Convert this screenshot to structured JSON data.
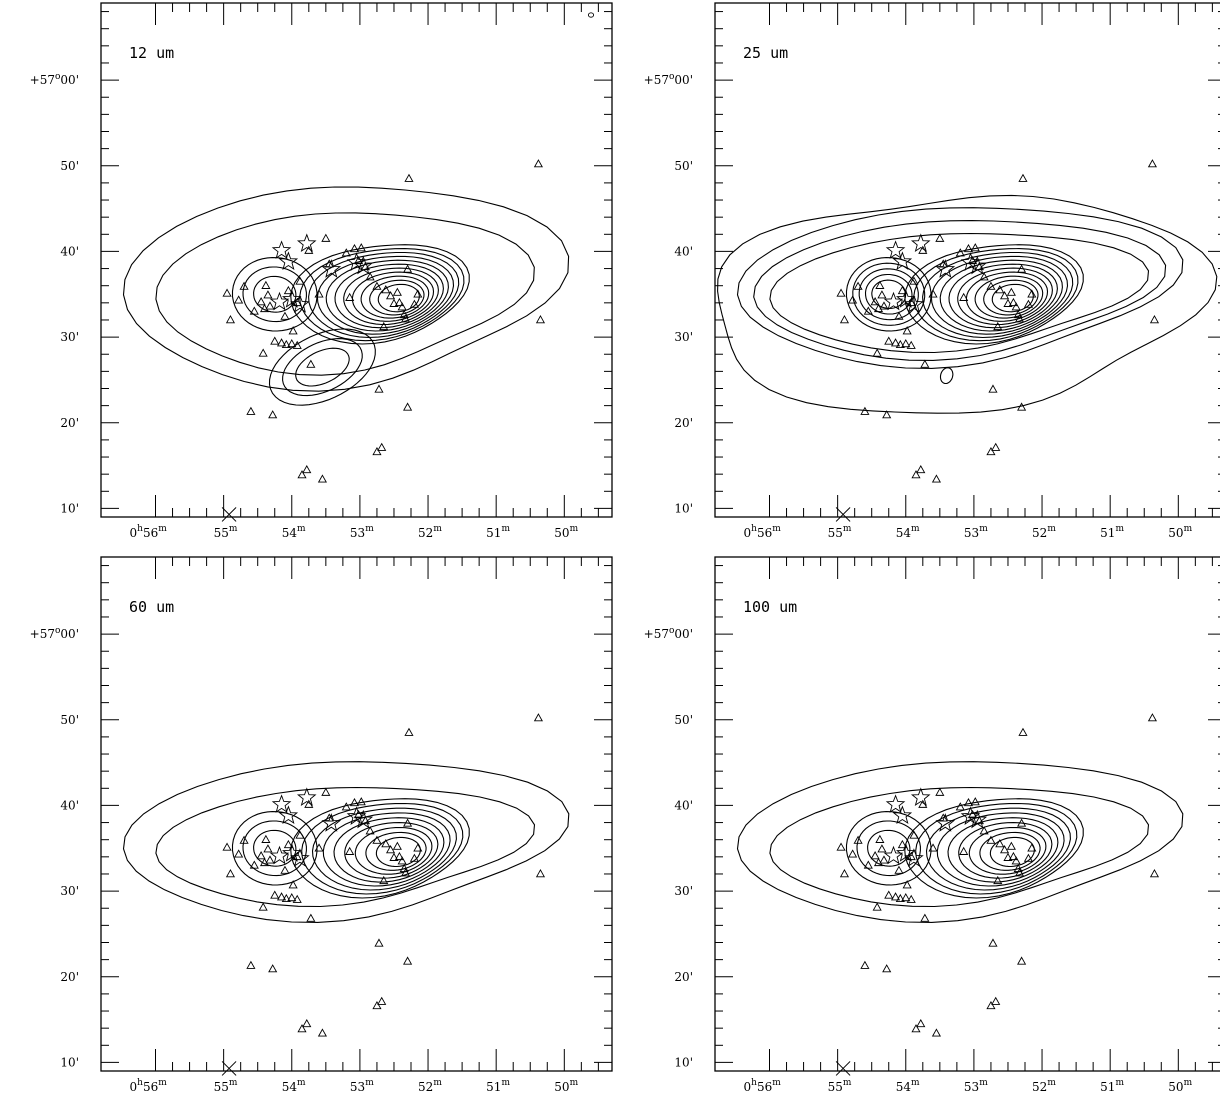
{
  "chart_data": {
    "type": "contour",
    "x_axis": {
      "ra_hours": 0,
      "ticks": [
        {
          "h": "0",
          "m": "56",
          "ra_min": 56
        },
        {
          "m": "55",
          "ra_min": 55
        },
        {
          "m": "54",
          "ra_min": 54
        },
        {
          "m": "53",
          "ra_min": 53
        },
        {
          "m": "52",
          "ra_min": 52
        },
        {
          "m": "51",
          "ra_min": 51
        },
        {
          "m": "50",
          "ra_min": 50
        }
      ],
      "range_ra_min": [
        56.8,
        49.3
      ]
    },
    "y_axis": {
      "ticks": [
        {
          "label": "+57°00'",
          "deg": "+57",
          "arcmin": "00",
          "dec_arcmin": 60
        },
        {
          "label": "50'",
          "arcmin": "50",
          "dec_arcmin": 50
        },
        {
          "label": "40'",
          "arcmin": "40",
          "dec_arcmin": 40
        },
        {
          "label": "30'",
          "arcmin": "30",
          "dec_arcmin": 30
        },
        {
          "label": "20'",
          "arcmin": "20",
          "dec_arcmin": 20
        },
        {
          "label": "10'",
          "arcmin": "10",
          "dec_arcmin": 10
        }
      ],
      "range_dec_arcmin": [
        9,
        69
      ]
    },
    "panels": [
      {
        "title": "12 um",
        "position": "top-left",
        "beam_marker": true,
        "lower_lobe": true
      },
      {
        "title": "25 um",
        "position": "top-right",
        "beam_marker": false,
        "lower_lobe": false,
        "outer_envelope": true
      },
      {
        "title": "60 um",
        "position": "bottom-left",
        "beam_marker": false,
        "lower_lobe": false
      },
      {
        "title": "100 um",
        "position": "bottom-right",
        "beam_marker": false,
        "lower_lobe": false
      }
    ],
    "triangles": [
      [
        54.95,
        35.1
      ],
      [
        54.9,
        32.0
      ],
      [
        54.78,
        34.3
      ],
      [
        54.7,
        35.9
      ],
      [
        54.55,
        33.0
      ],
      [
        54.45,
        34.1
      ],
      [
        54.42,
        28.1
      ],
      [
        54.38,
        36.0
      ],
      [
        54.35,
        34.9
      ],
      [
        54.4,
        33.3
      ],
      [
        54.32,
        33.6
      ],
      [
        54.1,
        32.4
      ],
      [
        54.05,
        35.4
      ],
      [
        53.98,
        30.7
      ],
      [
        53.92,
        34.0
      ],
      [
        53.88,
        36.5
      ],
      [
        53.75,
        40.1
      ],
      [
        53.6,
        35.0
      ],
      [
        53.5,
        41.5
      ],
      [
        53.45,
        38.5
      ],
      [
        53.2,
        39.8
      ],
      [
        53.15,
        34.6
      ],
      [
        53.08,
        40.3
      ],
      [
        53.02,
        38.9
      ],
      [
        52.98,
        40.4
      ],
      [
        52.92,
        38.2
      ],
      [
        52.85,
        37.0
      ],
      [
        52.75,
        35.9
      ],
      [
        52.65,
        31.2
      ],
      [
        52.62,
        35.5
      ],
      [
        52.55,
        34.8
      ],
      [
        52.5,
        33.9
      ],
      [
        52.45,
        35.2
      ],
      [
        52.42,
        34.0
      ],
      [
        52.38,
        33.5
      ],
      [
        52.35,
        32.6
      ],
      [
        52.3,
        37.9
      ],
      [
        52.33,
        32.1
      ],
      [
        52.2,
        33.8
      ],
      [
        52.15,
        35.0
      ],
      [
        52.28,
        48.5
      ],
      [
        54.6,
        21.3
      ],
      [
        54.28,
        20.9
      ],
      [
        53.85,
        13.9
      ],
      [
        53.78,
        14.5
      ],
      [
        53.55,
        13.4
      ],
      [
        52.75,
        16.6
      ],
      [
        52.68,
        17.1
      ],
      [
        52.3,
        21.8
      ],
      [
        52.72,
        23.9
      ],
      [
        50.38,
        50.2
      ],
      [
        50.35,
        32.0
      ],
      [
        54.25,
        29.5
      ],
      [
        54.15,
        29.3
      ],
      [
        54.08,
        29.1
      ],
      [
        54.0,
        29.2
      ],
      [
        53.92,
        29.0
      ],
      [
        53.72,
        26.8
      ]
    ],
    "stars": [
      [
        54.15,
        40.1
      ],
      [
        54.05,
        38.8
      ],
      [
        53.78,
        40.9
      ],
      [
        54.0,
        34.4
      ],
      [
        53.88,
        33.8
      ],
      [
        53.42,
        37.9
      ],
      [
        53.05,
        38.7
      ],
      [
        52.95,
        38.3
      ],
      [
        54.18,
        34.1
      ]
    ],
    "origin_marker": [
      54.92,
      9.3
    ]
  }
}
